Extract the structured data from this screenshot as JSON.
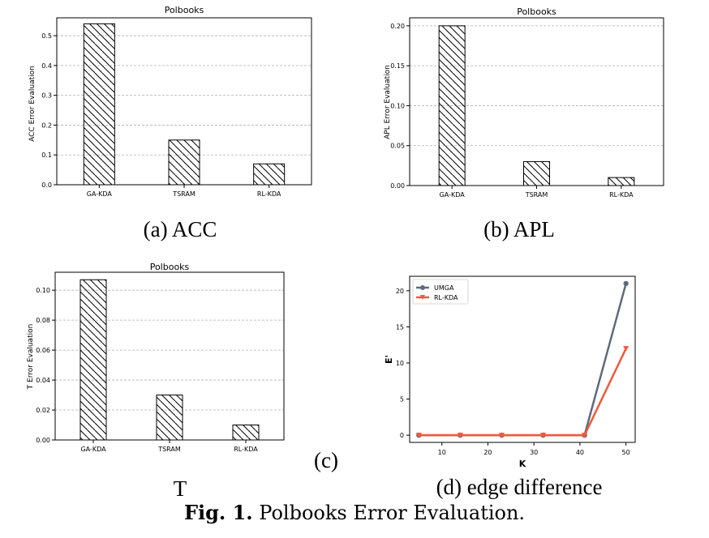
{
  "figure_caption": {
    "label": "Fig. 1.",
    "text": "Polbooks Error Evaluation."
  },
  "panel_captions": {
    "a": "(a) ACC",
    "b": "(b) APL",
    "c_label": "(c)",
    "c_text": "T",
    "d": "(d) edge difference"
  },
  "colors": {
    "UMGA": "#5d6b7a",
    "RL-KDA": "#f05a3a"
  },
  "chart_data": [
    {
      "type": "bar",
      "title": "Polbooks",
      "categories": [
        "GA-KDA",
        "TSRAM",
        "RL-KDA"
      ],
      "values": [
        0.54,
        0.15,
        0.07
      ],
      "ylabel": "ACC Error Evaluation",
      "xlabel": "",
      "ylim": [
        0,
        0.56
      ],
      "yticks": [
        "0.0",
        "0.1",
        "0.2",
        "0.3",
        "0.4",
        "0.5"
      ],
      "grid": true,
      "hatch": true
    },
    {
      "type": "bar",
      "title": "Polbooks",
      "categories": [
        "GA-KDA",
        "TSRAM",
        "RL-KDA"
      ],
      "values": [
        0.2,
        0.03,
        0.01
      ],
      "ylabel": "APL Error Evaluation",
      "xlabel": "",
      "ylim": [
        0,
        0.21
      ],
      "yticks": [
        "0.00",
        "0.05",
        "0.10",
        "0.15",
        "0.20"
      ],
      "grid": true,
      "hatch": true
    },
    {
      "type": "bar",
      "title": "Polbooks",
      "categories": [
        "GA-KDA",
        "TSRAM",
        "RL-KDA"
      ],
      "values": [
        0.107,
        0.03,
        0.01
      ],
      "ylabel": "T Error Evaluation",
      "xlabel": "",
      "ylim": [
        0,
        0.112
      ],
      "yticks": [
        "0.00",
        "0.02",
        "0.04",
        "0.06",
        "0.08",
        "0.10"
      ],
      "grid": true,
      "hatch": true
    },
    {
      "type": "line",
      "title": "",
      "x": [
        5,
        14,
        23,
        32,
        41,
        50
      ],
      "series": [
        {
          "name": "UMGA",
          "values": [
            0,
            0,
            0,
            0,
            0,
            21
          ],
          "marker": "circle"
        },
        {
          "name": "RL-KDA",
          "values": [
            0,
            0,
            0,
            0,
            0,
            12
          ],
          "marker": "triangle-down"
        }
      ],
      "xlabel": "K",
      "ylabel": "E'",
      "xlim": [
        3,
        52
      ],
      "ylim": [
        -1,
        22
      ],
      "xticks": [
        "10",
        "20",
        "30",
        "40",
        "50"
      ],
      "yticks": [
        "0",
        "5",
        "10",
        "15",
        "20"
      ],
      "grid": false,
      "legend": "top-left"
    }
  ]
}
